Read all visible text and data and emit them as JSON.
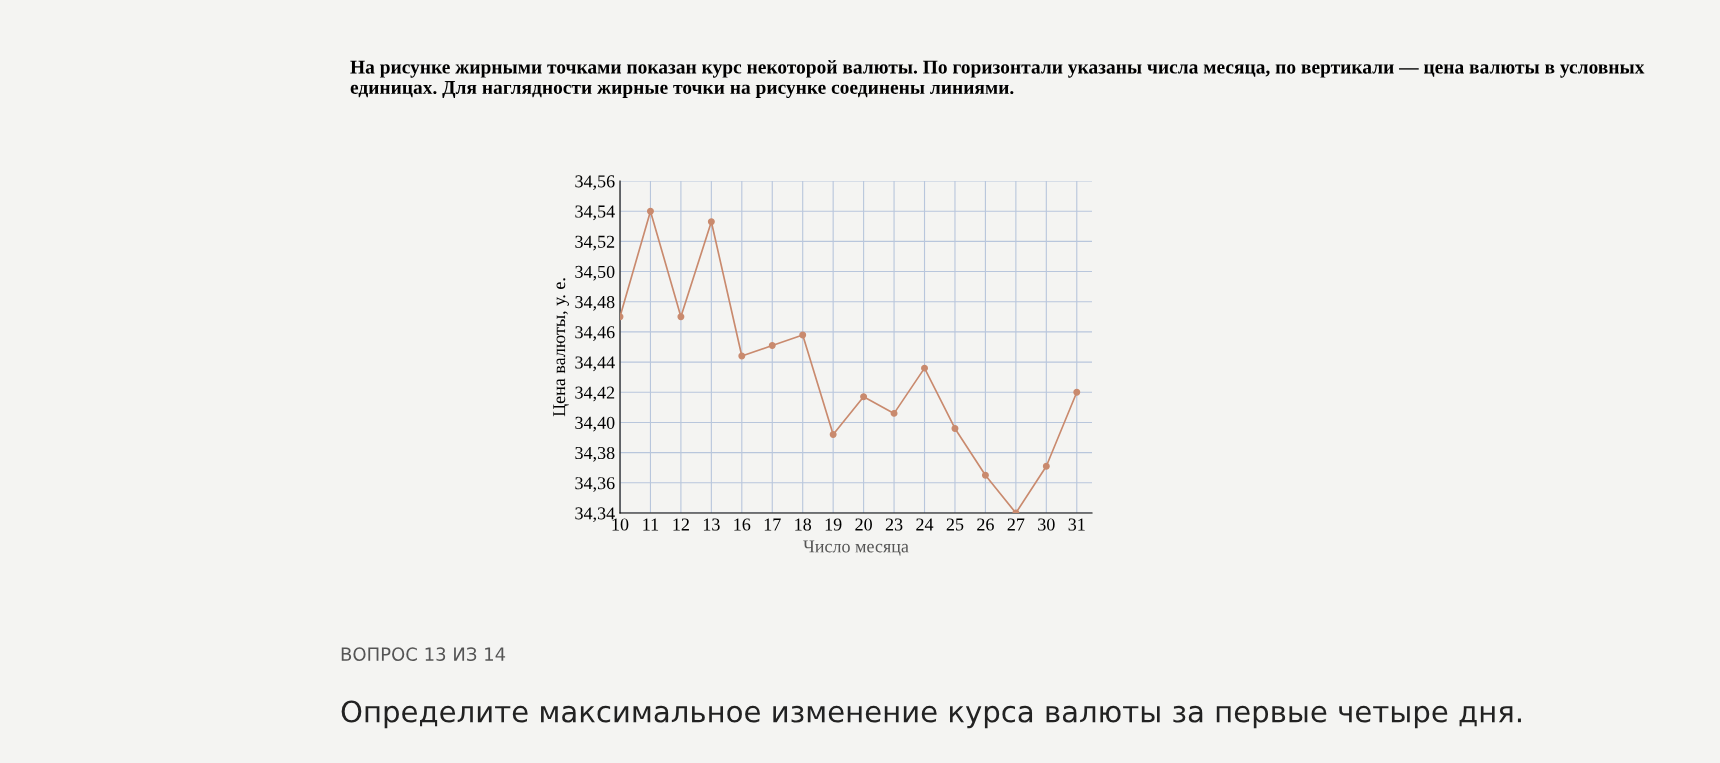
{
  "chart_data": {
    "type": "line",
    "title": "На рисунке жирными точками показан курс некоторой валюты. По горизонтали указаны числа месяца, по вертикали — цена валюты в условных единицах. Для наглядности жирные точки на рисунке соединены линиями.",
    "xlabel": "Число месяца",
    "ylabel": "Цена валюты, у. е.",
    "categories": [
      "10",
      "11",
      "12",
      "13",
      "16",
      "17",
      "18",
      "19",
      "20",
      "23",
      "24",
      "25",
      "26",
      "27",
      "30",
      "31"
    ],
    "series": [
      {
        "color": "#c98a6e",
        "values": [
          34.47,
          34.54,
          34.47,
          34.533,
          34.444,
          34.451,
          34.458,
          34.392,
          34.417,
          34.406,
          34.436,
          34.396,
          34.365,
          34.34,
          34.371,
          34.42
        ]
      }
    ],
    "ylim": [
      34.34,
      34.56
    ],
    "yticks": [
      {
        "value": 34.34,
        "label": "34,34"
      },
      {
        "value": 34.36,
        "label": "34,36"
      },
      {
        "value": 34.38,
        "label": "34,38"
      },
      {
        "value": 34.4,
        "label": "34,40"
      },
      {
        "value": 34.42,
        "label": "34,42"
      },
      {
        "value": 34.44,
        "label": "34,44"
      },
      {
        "value": 34.46,
        "label": "34,46"
      },
      {
        "value": 34.48,
        "label": "34,48"
      },
      {
        "value": 34.5,
        "label": "34,50"
      },
      {
        "value": 34.52,
        "label": "34,52"
      },
      {
        "value": 34.54,
        "label": "34,54"
      },
      {
        "value": 34.56,
        "label": "34,56"
      }
    ],
    "grid": true,
    "marker": "circle",
    "line_style": "solid",
    "annotations": [
      "ВОПРОС 13 ИЗ 14",
      "Определите максимальное изменение курса валюты за первые четыре дня."
    ]
  }
}
